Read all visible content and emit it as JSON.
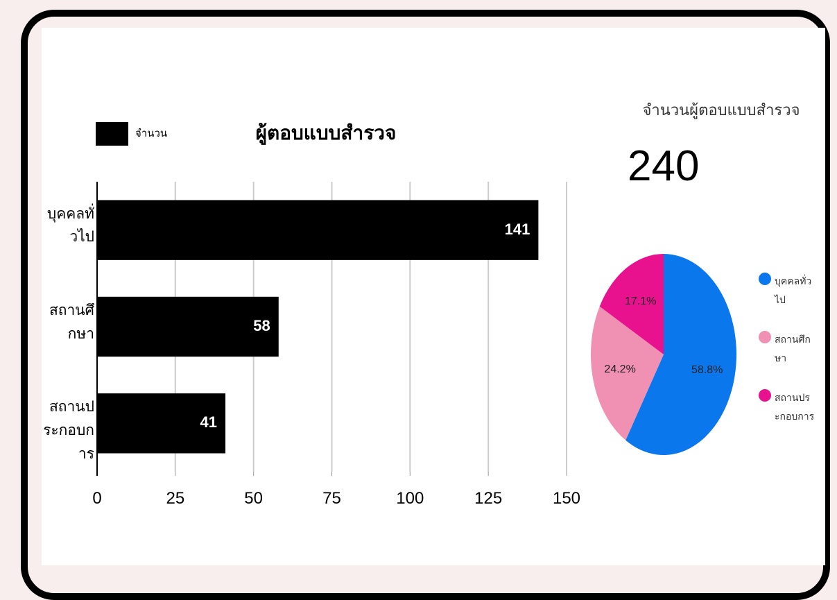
{
  "chart_data": [
    {
      "type": "bar",
      "orientation": "horizontal",
      "title": "ผู้ตอบแบบสำรวจ",
      "legend": "จำนวน",
      "categories": [
        "บุคคลทั่วไป",
        "สถานศึกษา",
        "สถานประกอบการ"
      ],
      "values": [
        141,
        58,
        41
      ],
      "color": "#000000",
      "xlim": [
        0,
        150
      ],
      "xticks": [
        0,
        25,
        50,
        75,
        100,
        125,
        150
      ],
      "grid": true
    },
    {
      "type": "scorecard",
      "title": "จำนวนผู้ตอบแบบสำรวจ",
      "value": 240
    },
    {
      "type": "pie",
      "categories": [
        "บุคคลทั่วไป",
        "สถานศึกษา",
        "สถานประกอบการ"
      ],
      "values": [
        58.8,
        24.2,
        17.1
      ],
      "value_labels": [
        "58.8%",
        "24.2%",
        "17.1%"
      ],
      "colors": [
        "#0b77ec",
        "#f090b2",
        "#e8128e"
      ],
      "legend": "right"
    }
  ]
}
